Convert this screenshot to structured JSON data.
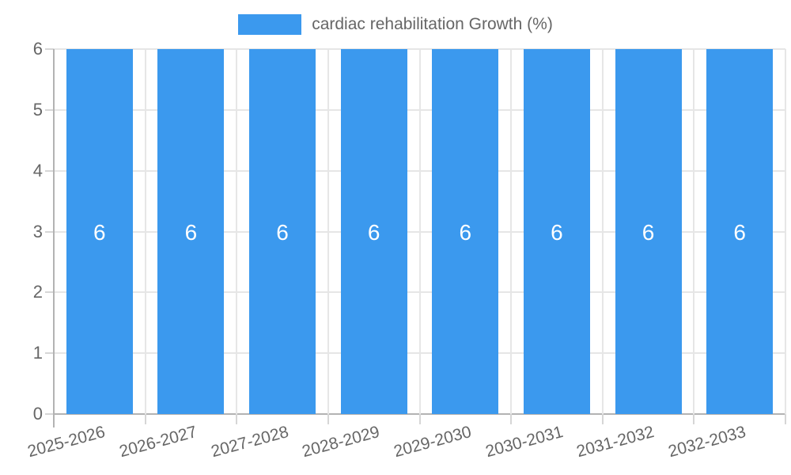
{
  "legend": {
    "label": "cardiac rehabilitation Growth (%)",
    "swatch_color": "#3B99EE"
  },
  "chart_data": {
    "type": "bar",
    "title": "cardiac rehabilitation Growth (%)",
    "categories": [
      "2025-2026",
      "2026-2027",
      "2027-2028",
      "2028-2029",
      "2029-2030",
      "2030-2031",
      "2031-2032",
      "2032-2033"
    ],
    "values": [
      6,
      6,
      6,
      6,
      6,
      6,
      6,
      6
    ],
    "value_labels": [
      "6",
      "6",
      "6",
      "6",
      "6",
      "6",
      "6",
      "6"
    ],
    "ytick_labels": [
      "0",
      "1",
      "2",
      "3",
      "4",
      "5",
      "6"
    ],
    "yticks": [
      0,
      1,
      2,
      3,
      4,
      5,
      6
    ],
    "ylim": [
      0,
      6
    ],
    "xlabel": "",
    "ylabel": "",
    "grid": true,
    "legend_position": "top",
    "colors": {
      "bar": "#3B99EE",
      "axis_text": "#666666",
      "grid": "#E6E6E6",
      "axis_line": "#B3B3B3",
      "tick": "#D6D6D6",
      "value_label": "#FFFFFF",
      "background": "#FFFFFF"
    }
  }
}
